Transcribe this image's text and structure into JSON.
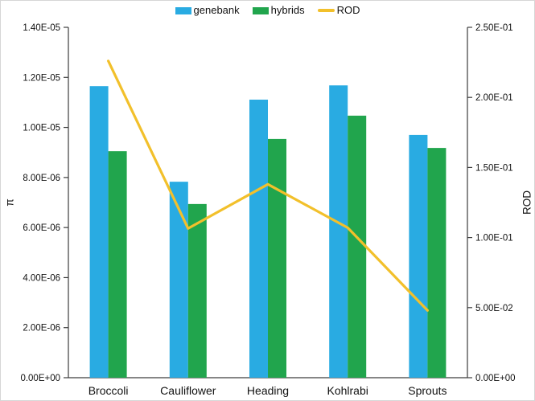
{
  "chart_data": {
    "type": "bar",
    "subtype": "grouped-bars-with-line-overlay",
    "categories": [
      "Broccoli",
      "Cauliflower",
      "Heading",
      "Kohlrabi",
      "Sprouts"
    ],
    "series": [
      {
        "name": "genebank",
        "render": "bar",
        "axis": "left",
        "color": "#29ABE2",
        "values": [
          1.165e-05,
          7.83e-06,
          1.111e-05,
          1.168e-05,
          9.7e-06
        ]
      },
      {
        "name": "hybrids",
        "render": "bar",
        "axis": "left",
        "color": "#21A54D",
        "values": [
          9.05e-06,
          6.94e-06,
          9.54e-06,
          1.047e-05,
          9.18e-06
        ]
      },
      {
        "name": "ROD",
        "render": "line",
        "axis": "right",
        "color": "#F2C02B",
        "values": [
          0.226,
          0.1065,
          0.138,
          0.107,
          0.048
        ]
      }
    ],
    "left_axis": {
      "label": "π",
      "min": 0,
      "max": 1.4e-05,
      "step": 2e-06,
      "tick_labels": [
        "0.00E+00",
        "2.00E-06",
        "4.00E-06",
        "6.00E-06",
        "8.00E-06",
        "1.00E-05",
        "1.20E-05",
        "1.40E-05"
      ]
    },
    "right_axis": {
      "label": "ROD",
      "min": 0,
      "max": 0.25,
      "step": 0.05,
      "tick_labels": [
        "0.00E+00",
        "5.00E-02",
        "1.00E-01",
        "1.50E-01",
        "2.00E-01",
        "2.50E-01"
      ]
    },
    "grid": false,
    "legend_position": "top-center",
    "axis_color": "#3d3d3d",
    "text_color": "#111111"
  }
}
